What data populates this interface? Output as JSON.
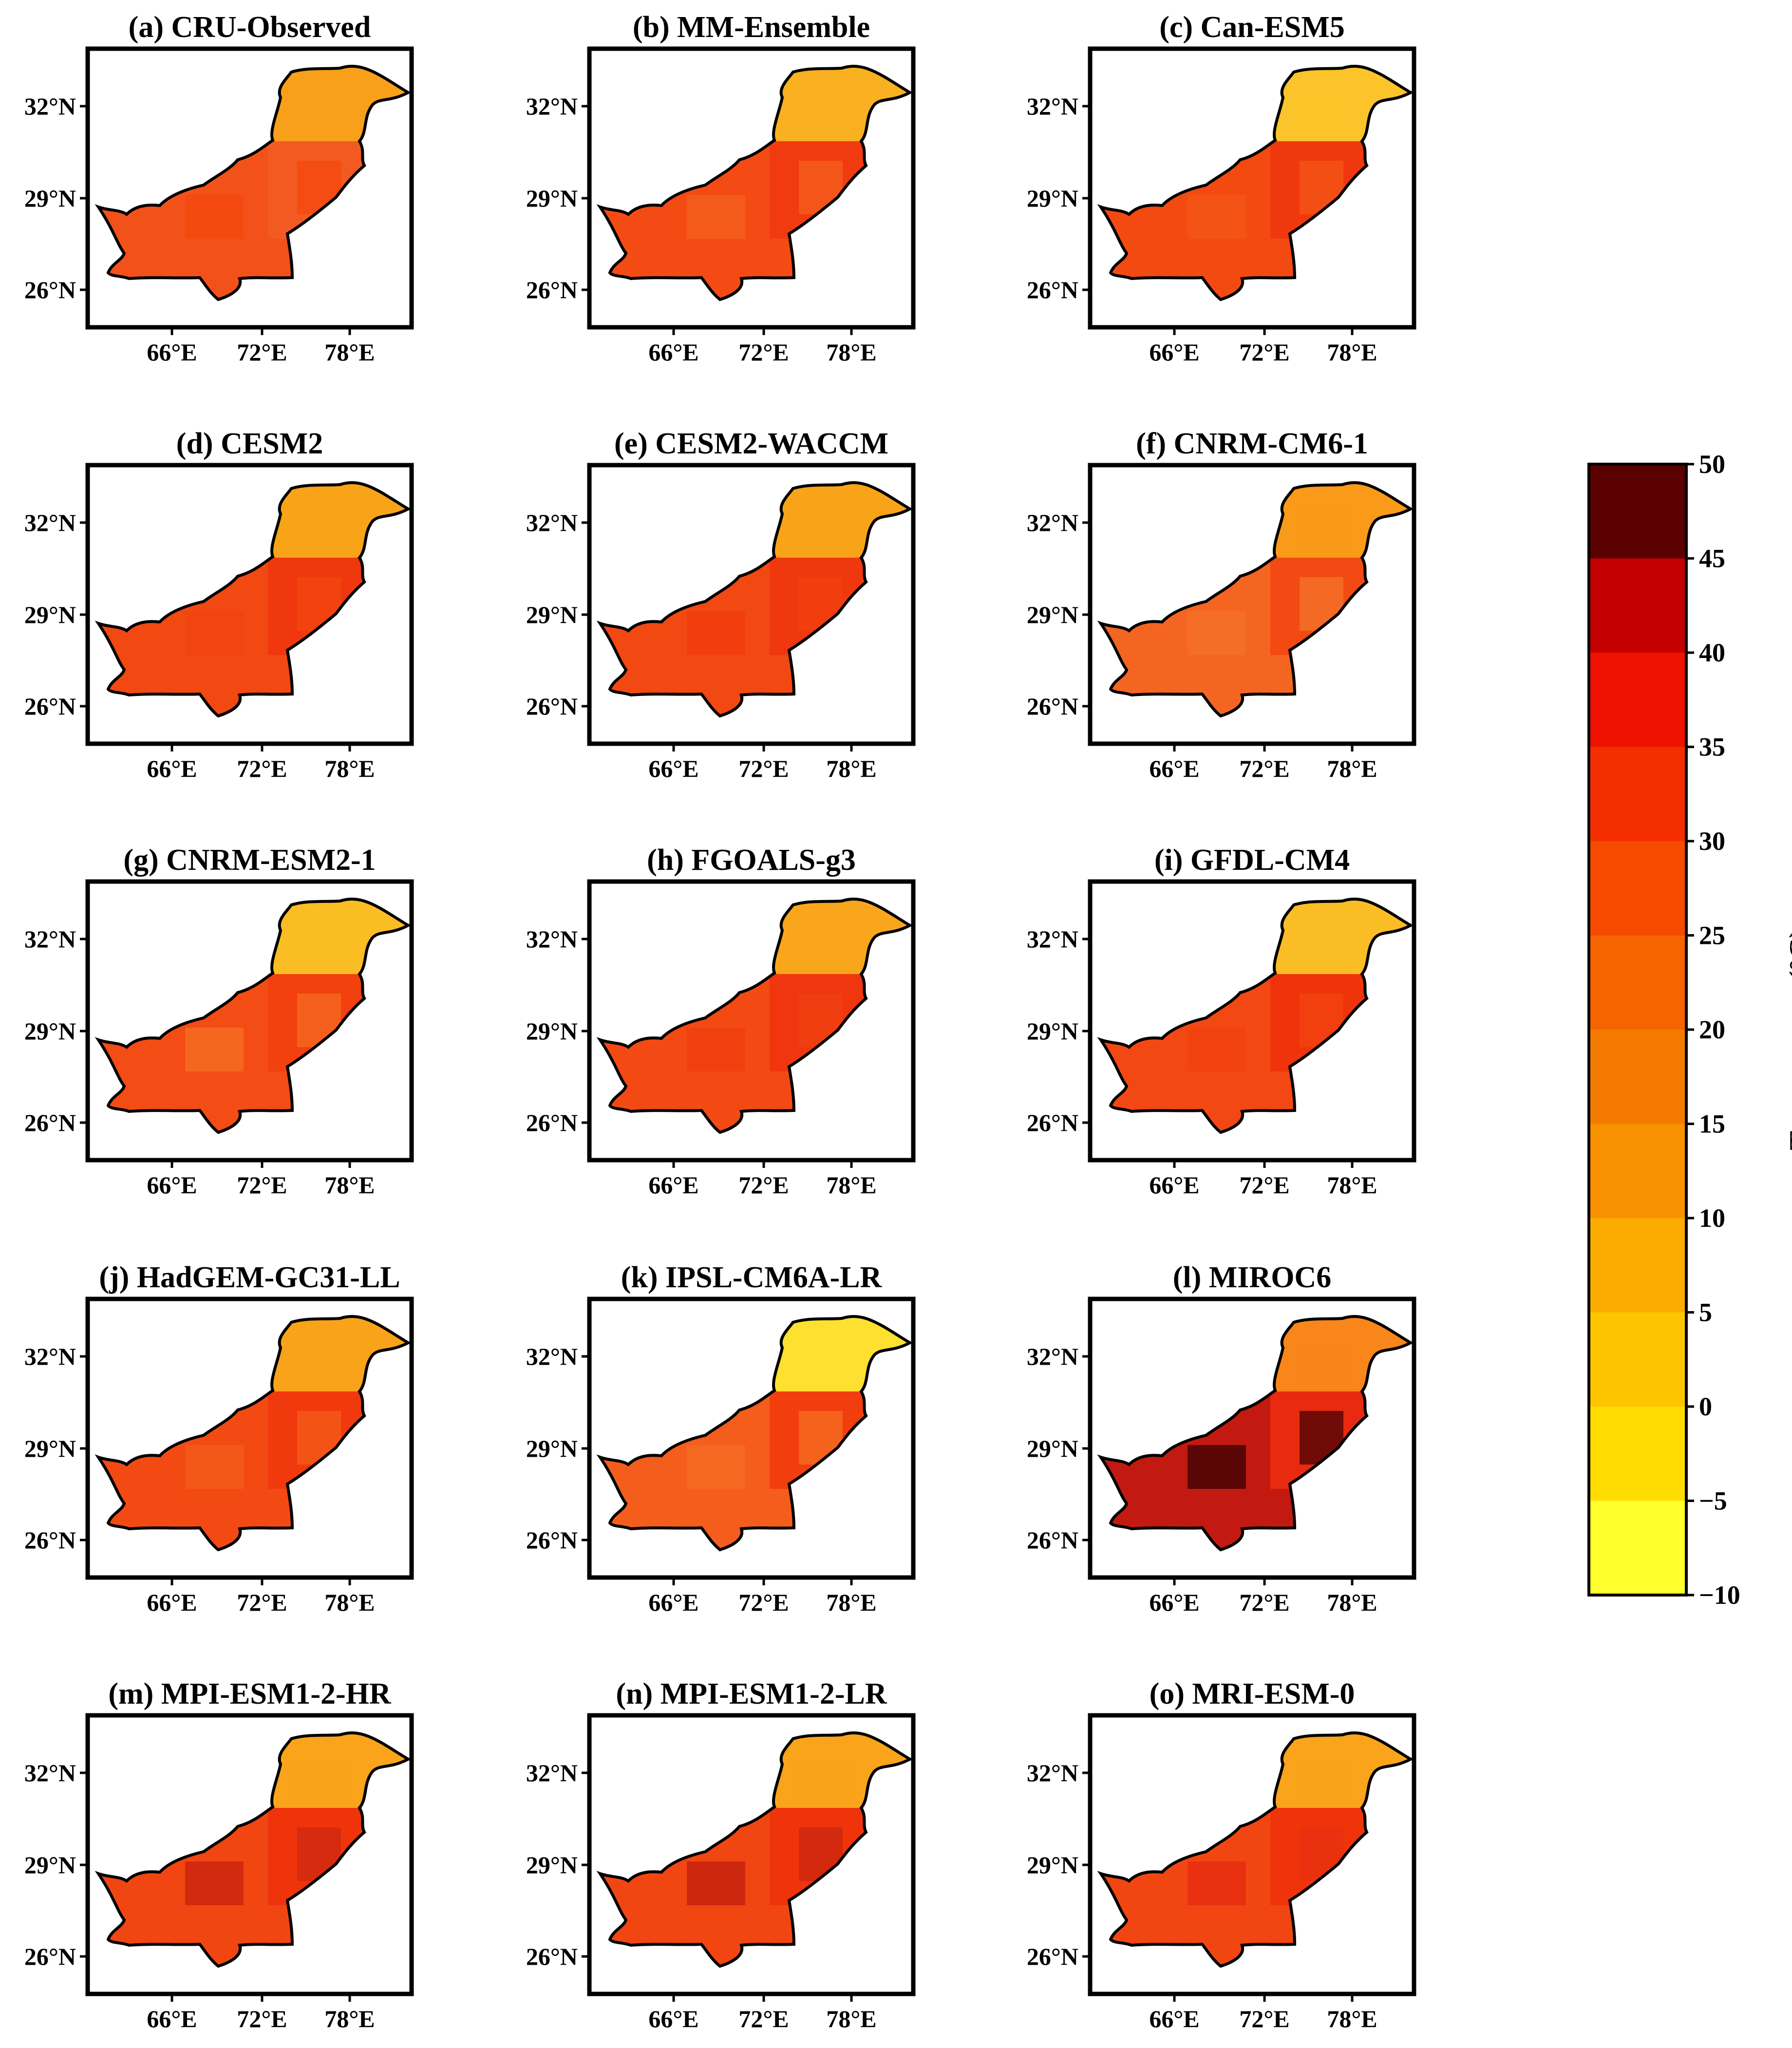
{
  "figure": {
    "colorbar": {
      "label": "Temperature (°C)",
      "ticks": [
        "50",
        "45",
        "40",
        "35",
        "30",
        "25",
        "20",
        "15",
        "10",
        "5",
        "0",
        "−5",
        "−10"
      ],
      "bins": [
        {
          "min": 45,
          "max": 50,
          "color": "#5a0000"
        },
        {
          "min": 40,
          "max": 45,
          "color": "#c40000"
        },
        {
          "min": 35,
          "max": 40,
          "color": "#ee1100"
        },
        {
          "min": 30,
          "max": 35,
          "color": "#f52e00"
        },
        {
          "min": 25,
          "max": 30,
          "color": "#f54a00"
        },
        {
          "min": 20,
          "max": 25,
          "color": "#f56400"
        },
        {
          "min": 15,
          "max": 20,
          "color": "#f57b00"
        },
        {
          "min": 10,
          "max": 15,
          "color": "#f89200"
        },
        {
          "min": 5,
          "max": 10,
          "color": "#fbac00"
        },
        {
          "min": 0,
          "max": 5,
          "color": "#fdc500"
        },
        {
          "min": -5,
          "max": 0,
          "color": "#ffdd00"
        },
        {
          "min": -10,
          "max": -5,
          "color": "#ffff2e"
        }
      ]
    },
    "axis": {
      "lat_ticks": [
        "32°N",
        "29°N",
        "26°N"
      ],
      "lon_ticks": [
        "66°E",
        "72°E",
        "78°E"
      ]
    },
    "panels": [
      {
        "title": "(a) CRU-Observed",
        "body": "#f3511a",
        "north": "#f8a019",
        "east": "#f25a22",
        "patch": "#f44a10"
      },
      {
        "title": "(b) MM-Ensemble",
        "body": "#f44b14",
        "north": "#f9b021",
        "east": "#f23a10",
        "patch": "#f45a1a"
      },
      {
        "title": "(c) Can-ESM5",
        "body": "#f34a12",
        "north": "#fbc42a",
        "east": "#f0380e",
        "patch": "#f35416"
      },
      {
        "title": "(d) CESM2",
        "body": "#f24812",
        "north": "#f9a418",
        "east": "#f0380e",
        "patch": "#f24410"
      },
      {
        "title": "(e) CESM2-WACCM",
        "body": "#f24812",
        "north": "#f9a418",
        "east": "#f0380e",
        "patch": "#f23e0e"
      },
      {
        "title": "(f) CNRM-CM6-1",
        "body": "#f56522",
        "north": "#f99a18",
        "east": "#f24a12",
        "patch": "#f56e28"
      },
      {
        "title": "(g) CNRM-ESM2-1",
        "body": "#f34c14",
        "north": "#fbbd24",
        "east": "#f2400e",
        "patch": "#f5661f"
      },
      {
        "title": "(h) FGOALS-g3",
        "body": "#f34a14",
        "north": "#f9a61c",
        "east": "#f0360e",
        "patch": "#f14010"
      },
      {
        "title": "(i) GFDL-CM4",
        "body": "#f34814",
        "north": "#fbbd26",
        "east": "#ef340c",
        "patch": "#f2420f"
      },
      {
        "title": "(j) HadGEM-GC31-LL",
        "body": "#f34a14",
        "north": "#f9a31a",
        "east": "#f03a0e",
        "patch": "#f45818"
      },
      {
        "title": "(k) IPSL-CM6A-LR",
        "body": "#f55d1c",
        "north": "#fde030",
        "east": "#f23e0e",
        "patch": "#f5681f"
      },
      {
        "title": "(l) MIROC6",
        "body": "#c21a10",
        "north": "#f8861a",
        "east": "#e82a10",
        "patch": "#5a0606"
      },
      {
        "title": "(m) MPI-ESM1-2-HR",
        "body": "#f24612",
        "north": "#f9a41a",
        "east": "#ef340c",
        "patch": "#d22a10"
      },
      {
        "title": "(n) MPI-ESM1-2-LR",
        "body": "#f24612",
        "north": "#f9a41a",
        "east": "#ef340c",
        "patch": "#cc2810"
      },
      {
        "title": "(o) MRI-ESM-0",
        "body": "#f24612",
        "north": "#f9a41a",
        "east": "#ef340c",
        "patch": "#e83010"
      }
    ]
  }
}
